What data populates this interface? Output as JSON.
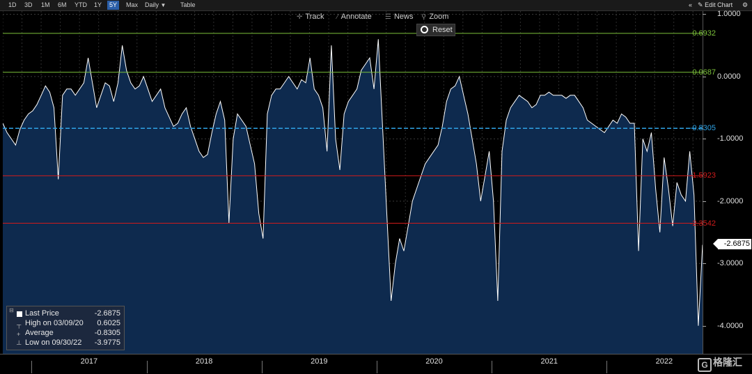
{
  "toolbar": {
    "ranges": [
      "1D",
      "3D",
      "1M",
      "6M",
      "YTD",
      "1Y",
      "5Y",
      "Max"
    ],
    "active_range": "5Y",
    "frequency": "Daily",
    "frequency_arrow": "▼",
    "table_label": "Table",
    "collapse_icon": "«",
    "edit_chart_label": "Edit Chart",
    "settings_icon": "gear-icon"
  },
  "chart_tools": {
    "track": "Track",
    "annotate": "Annotate",
    "news": "News",
    "zoom": "Zoom",
    "reset": "Reset"
  },
  "legend": {
    "last_price_label": "Last Price",
    "last_price_value": "-2.6875",
    "high_label": "High on 03/09/20",
    "high_value": "0.6025",
    "average_label": "Average",
    "average_value": "-0.8305",
    "low_label": "Low on 09/30/22",
    "low_value": "-3.9775"
  },
  "last_value_tag": "-2.6875",
  "watermark": "格隆汇",
  "colors": {
    "background": "#000000",
    "area_fill": "#0e2a4e",
    "line": "#ffffff",
    "green_level": "#7cc23b",
    "red_level": "#d11b1b",
    "average_level": "#2fa3e6",
    "active_tab": "#2a5ea8"
  },
  "chart_data": {
    "type": "area",
    "x_labels": [
      "2017",
      "2018",
      "2019",
      "2020",
      "2021",
      "2022"
    ],
    "x_range": [
      "2016-10",
      "2022-11"
    ],
    "ylim": [
      -4.45,
      1.05
    ],
    "y_ticks": [
      1.0,
      0.0,
      -1.0,
      -2.0,
      -3.0,
      -4.0
    ],
    "y_tick_labels": [
      "1.0000",
      "0.0000",
      "-1.0000",
      "-2.0000",
      "-3.0000",
      "-4.0000"
    ],
    "grid": true,
    "legend_position": "bottom-left",
    "levels": [
      {
        "label": "0.6932",
        "value": 0.6932,
        "style": "solid",
        "color_key": "green_level"
      },
      {
        "label": "0.0687",
        "value": 0.0687,
        "style": "solid",
        "color_key": "green_level"
      },
      {
        "label": "-0.8305",
        "value": -0.8305,
        "style": "dashed",
        "color_key": "average_level"
      },
      {
        "label": "-1.5923",
        "value": -1.5923,
        "style": "solid",
        "color_key": "red_level"
      },
      {
        "label": "-2.3542",
        "value": -2.3542,
        "style": "solid",
        "color_key": "red_level"
      }
    ],
    "series": [
      {
        "values_start": "2016-10",
        "values_end": "2022-11",
        "values": [
          -0.75,
          -0.9,
          -1.0,
          -1.1,
          -0.85,
          -0.7,
          -0.6,
          -0.55,
          -0.45,
          -0.3,
          -0.15,
          -0.25,
          -0.5,
          -1.65,
          -0.3,
          -0.2,
          -0.2,
          -0.3,
          -0.2,
          -0.1,
          0.3,
          -0.1,
          -0.5,
          -0.3,
          -0.1,
          -0.15,
          -0.4,
          -0.1,
          0.5,
          0.1,
          -0.1,
          -0.2,
          -0.15,
          0.0,
          -0.2,
          -0.4,
          -0.3,
          -0.2,
          -0.5,
          -0.65,
          -0.8,
          -0.75,
          -0.6,
          -0.5,
          -0.8,
          -1.0,
          -1.2,
          -1.3,
          -1.25,
          -0.9,
          -0.6,
          -0.4,
          -0.7,
          -2.35,
          -1.0,
          -0.6,
          -0.7,
          -0.8,
          -1.1,
          -1.4,
          -2.2,
          -2.6,
          -0.6,
          -0.3,
          -0.2,
          -0.2,
          -0.1,
          0.0,
          -0.1,
          -0.2,
          -0.05,
          -0.1,
          0.3,
          -0.2,
          -0.3,
          -0.5,
          -1.2,
          0.5,
          -1.0,
          -1.5,
          -0.6,
          -0.4,
          -0.3,
          -0.2,
          0.1,
          0.2,
          0.3,
          -0.2,
          0.6,
          -0.8,
          -2.2,
          -3.6,
          -3.0,
          -2.6,
          -2.8,
          -2.4,
          -2.0,
          -1.8,
          -1.6,
          -1.4,
          -1.3,
          -1.2,
          -1.1,
          -0.8,
          -0.4,
          -0.2,
          -0.15,
          0.0,
          -0.3,
          -0.6,
          -1.0,
          -1.4,
          -2.0,
          -1.6,
          -1.2,
          -2.0,
          -3.6,
          -1.2,
          -0.7,
          -0.5,
          -0.4,
          -0.3,
          -0.35,
          -0.4,
          -0.5,
          -0.45,
          -0.3,
          -0.3,
          -0.25,
          -0.3,
          -0.3,
          -0.3,
          -0.35,
          -0.3,
          -0.3,
          -0.4,
          -0.5,
          -0.7,
          -0.75,
          -0.8,
          -0.85,
          -0.9,
          -0.8,
          -0.7,
          -0.75,
          -0.6,
          -0.65,
          -0.75,
          -0.75,
          -2.8,
          -1.0,
          -1.2,
          -0.9,
          -1.8,
          -2.5,
          -1.3,
          -1.8,
          -2.4,
          -1.7,
          -1.9,
          -2.0,
          -1.2,
          -1.9,
          -4.0,
          -2.7
        ]
      }
    ]
  }
}
